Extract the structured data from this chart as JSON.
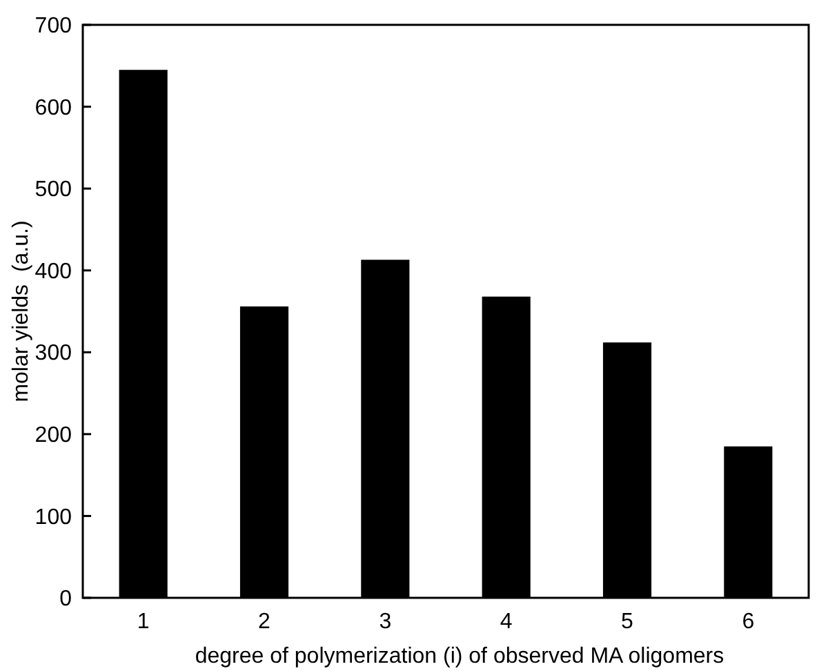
{
  "chart_data": {
    "type": "bar",
    "xlabel": "degree of polymerization (i) of observed MA oligomers",
    "ylabel": "molar yields  (a.u.)",
    "categories": [
      "1",
      "2",
      "3",
      "4",
      "5",
      "6"
    ],
    "values": [
      645,
      356,
      413,
      368,
      312,
      185
    ],
    "color": "#000000",
    "ylim": [
      0,
      700
    ],
    "yticks": [
      0,
      100,
      200,
      300,
      400,
      500,
      600,
      700
    ],
    "grid": false
  }
}
